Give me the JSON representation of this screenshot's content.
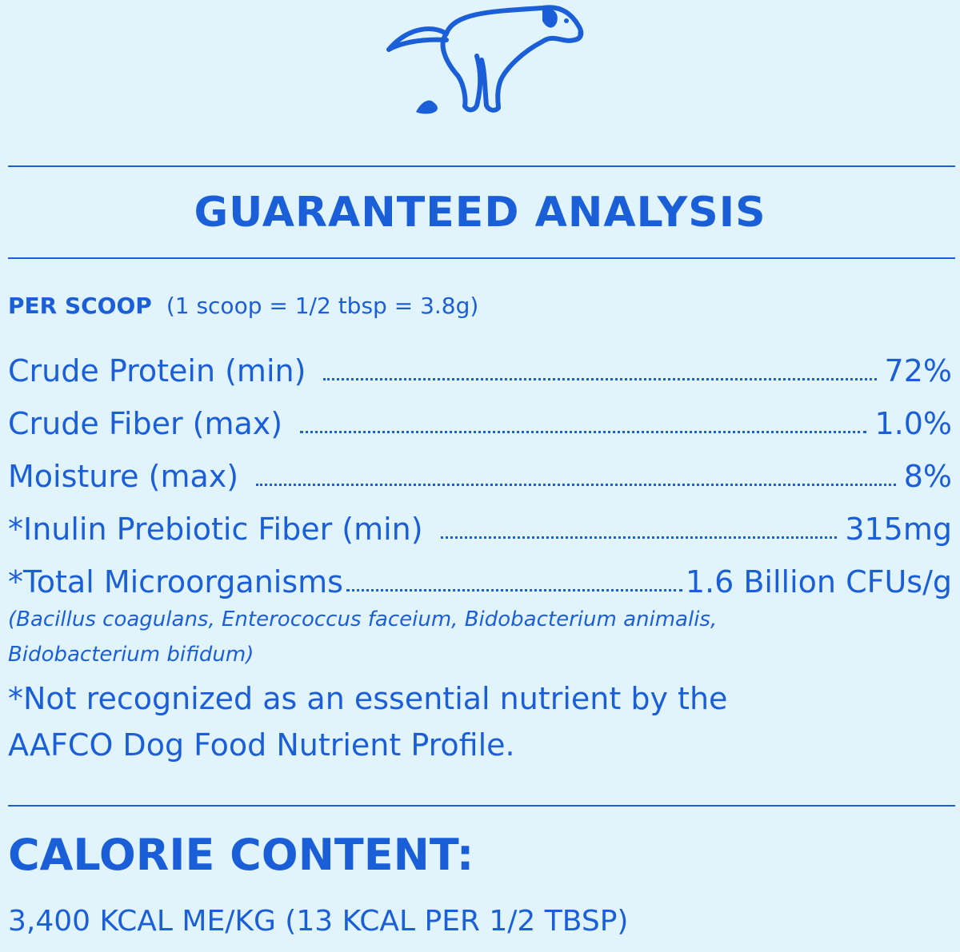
{
  "icon": "dog-pooping-icon",
  "colors": {
    "background": "#e1f4fb",
    "text": "#1b5fd8"
  },
  "title": "GUARANTEED ANALYSIS",
  "per_scoop": {
    "label": "PER SCOOP",
    "detail": "(1 scoop = 1/2 tbsp = 3.8g)"
  },
  "rows": [
    {
      "name": "Crude Protein (min)",
      "value": "72%"
    },
    {
      "name": "Crude Fiber (max)",
      "value": "1.0%"
    },
    {
      "name": "Moisture (max)",
      "value": "8%"
    },
    {
      "name": "*Inulin Prebiotic Fiber (min)",
      "value": "315mg"
    },
    {
      "name": "*Total Microorganisms",
      "value": "1.6 Billion CFUs/g"
    }
  ],
  "strains": [
    "(Bacillus coagulans, Enterococcus faceium, Bidobacterium animalis,",
    "Bidobacterium bifidum)"
  ],
  "note": [
    "*Not recognized as an essential nutrient by the",
    "AAFCO Dog Food Nutrient Profile."
  ],
  "calorie": {
    "heading": "CALORIE CONTENT:",
    "value": "3,400 KCAL ME/KG (13 KCAL PER 1/2 TBSP)"
  }
}
